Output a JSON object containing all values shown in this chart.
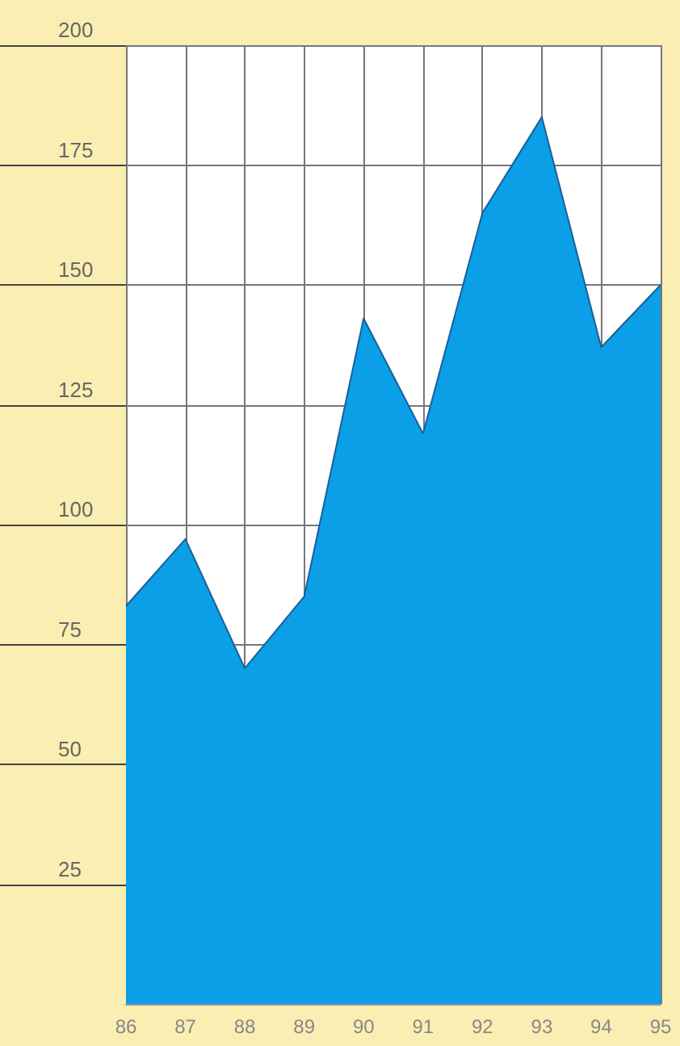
{
  "chart_data": {
    "type": "area",
    "categories": [
      "86",
      "87",
      "88",
      "89",
      "90",
      "91",
      "92",
      "93",
      "94",
      "95"
    ],
    "series": [
      {
        "color": "#0a9fe6",
        "values": [
          83,
          97,
          70,
          85,
          143,
          119,
          165,
          185,
          137,
          150
        ]
      }
    ],
    "ylim": [
      0,
      200
    ],
    "yticks": [
      25,
      50,
      75,
      100,
      125,
      150,
      175,
      200
    ],
    "grid": true,
    "marker": "none"
  }
}
